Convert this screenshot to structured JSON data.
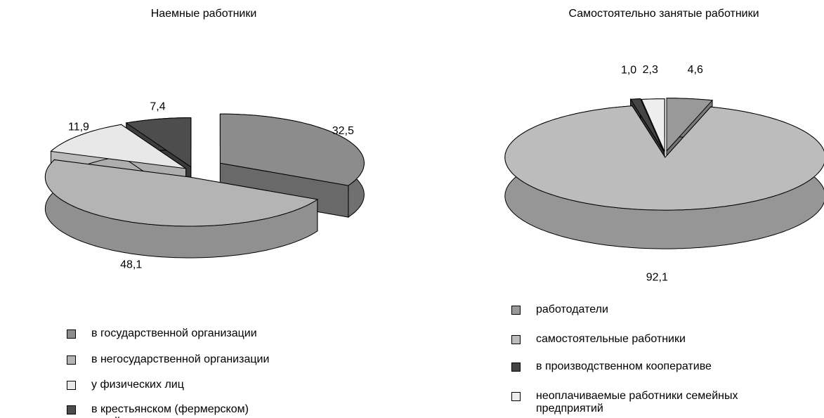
{
  "chart_data": [
    {
      "type": "pie3d",
      "title": "Наемные работники",
      "categories": [
        "в государственной организации",
        "в негосударственной организации",
        "у физических лиц",
        "в крестьянском (фермерском) хозяйстве"
      ],
      "values": [
        32.5,
        48.1,
        11.9,
        7.4
      ],
      "value_labels": [
        "32,5",
        "48,1",
        "11,9",
        "7,4"
      ],
      "colors": [
        "#8c8c8c",
        "#b4b4b4",
        "#e8e8e8",
        "#4d4d4d"
      ]
    },
    {
      "type": "pie3d",
      "title": "Самостоятельно занятые работники",
      "categories": [
        "работодатели",
        "самостоятельные работники",
        "в производственном кооперативе",
        "неоплачиваемые работники семейных предприятий"
      ],
      "values": [
        4.6,
        92.1,
        1.0,
        2.3
      ],
      "value_labels": [
        "4,6",
        "92,1",
        "1,0",
        "2,3"
      ],
      "colors": [
        "#999999",
        "#bcbcbc",
        "#444444",
        "#eeeeee"
      ]
    }
  ]
}
